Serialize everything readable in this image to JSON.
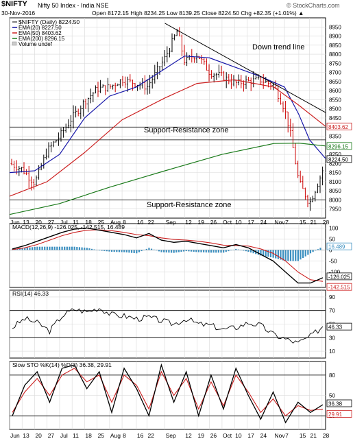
{
  "header": {
    "symbol": "$NIFTY",
    "name": "Nifty 50 Index - India  NSE",
    "watermark": "© StockCharts.com",
    "date": "30-Nov-2016",
    "ohlc": "Open 8172.15  High 8234.25  Low 8139.25  Close 8224.50  Chg +82.35 (+1.01%) ▲"
  },
  "legend": {
    "price": "$NIFTY (Daily) 8224.50",
    "ema20": "EMA(20) 8227.50",
    "ema50": "EMA(50) 8403.62",
    "ema200": "EMA(200) 8296.15",
    "volume": "Volume undef"
  },
  "annotations": {
    "trendline": "Down trend line",
    "zone1": "Support-Resistance zone",
    "zone2": "Support-Resistance zone"
  },
  "panels": {
    "macd_label": "MACD(12,26,9) -126.025, -142.515, 16.489",
    "rsi_label": "RSI(14) 46.33",
    "sto_label": "Slow STO %K(14) %D(3) 36.38, 29.91"
  },
  "colors": {
    "price_bar": "#000000",
    "ema20": "#1515a8",
    "ema50": "#cc2020",
    "ema200": "#1a7a1a",
    "macd_hist": "#3a8fc0",
    "grid": "#d8d8d8",
    "tag_bg": "#ffffff",
    "label_ema50": "#cc2020",
    "label_ema200": "#1a7a1a"
  },
  "chart_data": [
    {
      "type": "line",
      "panel": "price",
      "title": "$NIFTY (Daily) 8224.50",
      "ylim": [
        7900,
        9000
      ],
      "y_ticks": [
        7950,
        8000,
        8050,
        8100,
        8150,
        8200,
        8250,
        8300,
        8350,
        8400,
        8450,
        8500,
        8550,
        8600,
        8650,
        8700,
        8750,
        8800,
        8850,
        8900,
        8950
      ],
      "x_tick_labels": [
        "Jun",
        "13",
        "20",
        "27",
        "Jul",
        "11",
        "18",
        "25",
        "Aug",
        "8",
        "16",
        "22",
        "Sep",
        "12",
        "19",
        "26",
        "Oct",
        "10",
        "17",
        "24",
        "Nov",
        "7",
        "15",
        "21",
        "28"
      ],
      "x_tick_dates": [
        "2016-06-06",
        "2016-06-13",
        "2016-06-20",
        "2016-06-27",
        "2016-07-04",
        "2016-07-11",
        "2016-07-18",
        "2016-07-25",
        "2016-08-01",
        "2016-08-08",
        "2016-08-16",
        "2016-08-22",
        "2016-09-01",
        "2016-09-12",
        "2016-09-19",
        "2016-09-26",
        "2016-10-03",
        "2016-10-10",
        "2016-10-17",
        "2016-10-24",
        "2016-11-01",
        "2016-11-07",
        "2016-11-15",
        "2016-11-21",
        "2016-11-28"
      ],
      "series": [
        {
          "name": "$NIFTY",
          "x": [
            "2016-06-06",
            "2016-06-13",
            "2016-06-20",
            "2016-06-27",
            "2016-07-04",
            "2016-07-11",
            "2016-07-18",
            "2016-07-25",
            "2016-08-01",
            "2016-08-08",
            "2016-08-16",
            "2016-08-22",
            "2016-09-01",
            "2016-09-08",
            "2016-09-12",
            "2016-09-19",
            "2016-09-26",
            "2016-10-03",
            "2016-10-10",
            "2016-10-17",
            "2016-10-24",
            "2016-11-01",
            "2016-11-07",
            "2016-11-10",
            "2016-11-15",
            "2016-11-21",
            "2016-11-28",
            "2016-11-30"
          ],
          "values": [
            8200,
            8170,
            8090,
            8270,
            8350,
            8450,
            8540,
            8610,
            8620,
            8660,
            8640,
            8620,
            8780,
            8930,
            8760,
            8800,
            8700,
            8680,
            8640,
            8650,
            8660,
            8630,
            8500,
            8380,
            8100,
            7980,
            8150,
            8224.5
          ]
        },
        {
          "name": "EMA(20) 8227.50",
          "x": [
            "2016-06-06",
            "2016-06-20",
            "2016-07-04",
            "2016-07-18",
            "2016-08-01",
            "2016-08-16",
            "2016-09-01",
            "2016-09-12",
            "2016-09-26",
            "2016-10-10",
            "2016-10-24",
            "2016-11-07",
            "2016-11-15",
            "2016-11-21",
            "2016-11-30"
          ],
          "values": [
            8150,
            8160,
            8250,
            8450,
            8570,
            8620,
            8720,
            8790,
            8780,
            8730,
            8680,
            8620,
            8470,
            8330,
            8227.5
          ]
        },
        {
          "name": "EMA(50) 8403.62",
          "x": [
            "2016-06-06",
            "2016-06-27",
            "2016-07-18",
            "2016-08-08",
            "2016-09-01",
            "2016-09-19",
            "2016-10-10",
            "2016-11-01",
            "2016-11-15",
            "2016-11-30"
          ],
          "values": [
            8020,
            8100,
            8260,
            8440,
            8560,
            8640,
            8660,
            8620,
            8520,
            8403.62
          ]
        },
        {
          "name": "EMA(200) 8296.15",
          "x": [
            "2016-06-06",
            "2016-07-04",
            "2016-08-01",
            "2016-09-01",
            "2016-10-03",
            "2016-11-01",
            "2016-11-15",
            "2016-11-30"
          ],
          "values": [
            7920,
            7980,
            8070,
            8160,
            8250,
            8310,
            8312,
            8296.15
          ]
        }
      ],
      "annotations": [
        "Down trend line",
        "Support-Resistance zone",
        "Support-Resistance zone"
      ],
      "value_tags": [
        "8403.62",
        "8296.15",
        "8224.50"
      ]
    },
    {
      "type": "bar",
      "panel": "macd",
      "title": "MACD(12,26,9) -126.025, -142.515, 16.489",
      "ylim": [
        -170,
        120
      ],
      "y_ticks": [
        -100,
        -50,
        0,
        50,
        100
      ],
      "series": [
        {
          "name": "MACD",
          "values": [
            5,
            20,
            40,
            60,
            80,
            95,
            100,
            90,
            80,
            70,
            55,
            75,
            45,
            35,
            40,
            30,
            20,
            10,
            25,
            10,
            -20,
            -50,
            -100,
            -150,
            -150,
            -126.025
          ]
        },
        {
          "name": "Signal",
          "values": [
            2,
            10,
            25,
            45,
            65,
            80,
            90,
            92,
            88,
            80,
            70,
            65,
            55,
            48,
            45,
            40,
            32,
            22,
            20,
            18,
            5,
            -15,
            -50,
            -100,
            -135,
            -142.515
          ]
        },
        {
          "name": "Histogram",
          "values": [
            3,
            10,
            15,
            15,
            15,
            15,
            10,
            -2,
            -8,
            -10,
            -15,
            10,
            -10,
            -13,
            -5,
            -10,
            -12,
            -12,
            5,
            -8,
            -25,
            -35,
            -50,
            -50,
            -15,
            16.489
          ]
        }
      ],
      "value_tags": [
        "16.489",
        "-126.025",
        "-142.515"
      ]
    },
    {
      "type": "line",
      "panel": "rsi",
      "title": "RSI(14) 46.33",
      "ylim": [
        0,
        100
      ],
      "y_ticks": [
        10,
        30,
        50,
        70,
        90
      ],
      "reference_lines": [
        30,
        70
      ],
      "series": [
        {
          "name": "RSI(14)",
          "values": [
            45,
            58,
            52,
            40,
            62,
            72,
            68,
            74,
            64,
            62,
            58,
            60,
            55,
            50,
            58,
            50,
            48,
            42,
            45,
            52,
            48,
            35,
            28,
            22,
            32,
            46.33
          ]
        }
      ],
      "value_tags": [
        "46.33"
      ]
    },
    {
      "type": "line",
      "panel": "slow-sto",
      "title": "Slow STO %K(14) %D(3) 36.38, 29.91",
      "ylim": [
        0,
        100
      ],
      "y_ticks": [
        20,
        50,
        80
      ],
      "reference_lines": [
        20,
        80
      ],
      "series": [
        {
          "name": "%K(14)",
          "values": [
            20,
            65,
            85,
            40,
            90,
            95,
            60,
            85,
            25,
            90,
            60,
            20,
            95,
            40,
            85,
            20,
            80,
            30,
            90,
            50,
            15,
            55,
            10,
            40,
            25,
            36.38
          ]
        },
        {
          "name": "%D(3)",
          "values": [
            25,
            55,
            75,
            50,
            80,
            90,
            70,
            80,
            40,
            80,
            65,
            30,
            85,
            50,
            75,
            30,
            70,
            35,
            80,
            55,
            25,
            45,
            20,
            35,
            28,
            29.91
          ]
        }
      ],
      "value_tags": [
        "36.38",
        "29.91"
      ]
    }
  ]
}
